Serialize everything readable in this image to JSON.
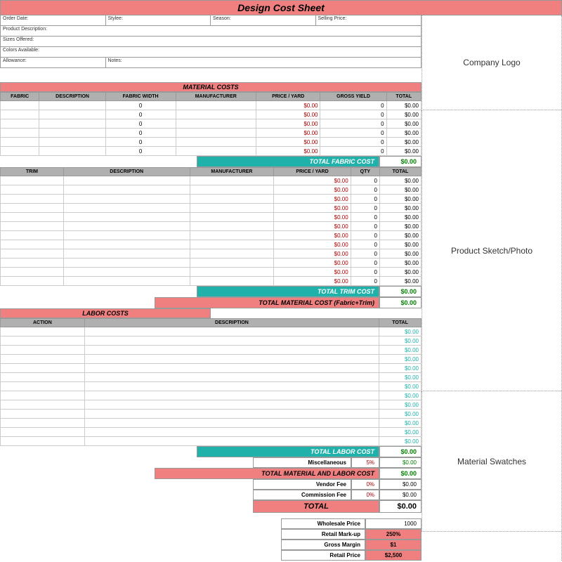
{
  "title": "Design Cost Sheet",
  "header": {
    "order_date": "Order Date:",
    "stylee": "Stylee:",
    "season": "Season:",
    "selling_price": "Selling Price:",
    "product_desc": "Product Description:",
    "sizes": "Sizes Offered:",
    "colors": "Colors Available:",
    "allowance": "Allowance:",
    "notes": "Notes:"
  },
  "sections": {
    "material_costs": "MATERIAL COSTS",
    "labor_costs": "LABOR COSTS",
    "total": "TOTAL"
  },
  "fabric": {
    "headers": [
      "FABRIC",
      "DESCRIPTION",
      "FABRIC WIDTH",
      "MANUFACTURER",
      "PRICE / YARD",
      "GROSS YIELD",
      "TOTAL"
    ],
    "rows": [
      {
        "width": "0",
        "price": "$0.00",
        "yield": "0",
        "total": "$0.00"
      },
      {
        "width": "0",
        "price": "$0.00",
        "yield": "0",
        "total": "$0.00"
      },
      {
        "width": "0",
        "price": "$0.00",
        "yield": "0",
        "total": "$0.00"
      },
      {
        "width": "0",
        "price": "$0.00",
        "yield": "0",
        "total": "$0.00"
      },
      {
        "width": "0",
        "price": "$0.00",
        "yield": "0",
        "total": "$0.00"
      },
      {
        "width": "0",
        "price": "$0.00",
        "yield": "0",
        "total": "$0.00"
      }
    ],
    "total_label": "TOTAL FABRIC COST",
    "total_val": "$0.00"
  },
  "trim": {
    "headers": [
      "TRIM",
      "DESCRIPTION",
      "MANUFACTURER",
      "PRICE / YARD",
      "QTY",
      "TOTAL"
    ],
    "rows": [
      {
        "price": "$0.00",
        "qty": "0",
        "total": "$0.00"
      },
      {
        "price": "$0.00",
        "qty": "0",
        "total": "$0.00"
      },
      {
        "price": "$0.00",
        "qty": "0",
        "total": "$0.00"
      },
      {
        "price": "$0.00",
        "qty": "0",
        "total": "$0.00"
      },
      {
        "price": "$0.00",
        "qty": "0",
        "total": "$0.00"
      },
      {
        "price": "$0.00",
        "qty": "0",
        "total": "$0.00"
      },
      {
        "price": "$0.00",
        "qty": "0",
        "total": "$0.00"
      },
      {
        "price": "$0.00",
        "qty": "0",
        "total": "$0.00"
      },
      {
        "price": "$0.00",
        "qty": "0",
        "total": "$0.00"
      },
      {
        "price": "$0.00",
        "qty": "0",
        "total": "$0.00"
      },
      {
        "price": "$0.00",
        "qty": "0",
        "total": "$0.00"
      },
      {
        "price": "$0.00",
        "qty": "0",
        "total": "$0.00"
      }
    ],
    "total_label": "TOTAL TRIM COST",
    "total_val": "$0.00"
  },
  "material_total": {
    "label": "TOTAL MATERIAL COST (Fabric+Trim)",
    "val": "$0.00"
  },
  "labor": {
    "headers": [
      "ACTION",
      "DESCRIPTION",
      "TOTAL"
    ],
    "row_count": 13,
    "total_val": "$0.00",
    "total_label": "TOTAL LABOR COST"
  },
  "misc": {
    "label": "Miscellaneous",
    "pct": "5%",
    "val": "$0.00"
  },
  "mat_labor_total": {
    "label": "TOTAL MATERIAL AND LABOR COST",
    "val": "$0.00"
  },
  "vendor": {
    "label": "Vendor Fee",
    "pct": "0%",
    "val": "$0.00"
  },
  "commission": {
    "label": "Commission Fee",
    "pct": "0%",
    "val": "$0.00"
  },
  "grand_total": {
    "label": "TOTAL",
    "val": "$0.00"
  },
  "pricing": {
    "wholesale": {
      "label": "Wholesale Price",
      "val": "1000"
    },
    "markup": {
      "label": "Retail Mark-up",
      "val": "250%"
    },
    "margin": {
      "label": "Gross Margin",
      "val": "$1"
    },
    "retail": {
      "label": "Retail Price",
      "val": "$2,500"
    }
  },
  "placeholders": {
    "logo": "Company Logo",
    "sketch": "Product Sketch/Photo",
    "swatches": "Material Swatches"
  }
}
